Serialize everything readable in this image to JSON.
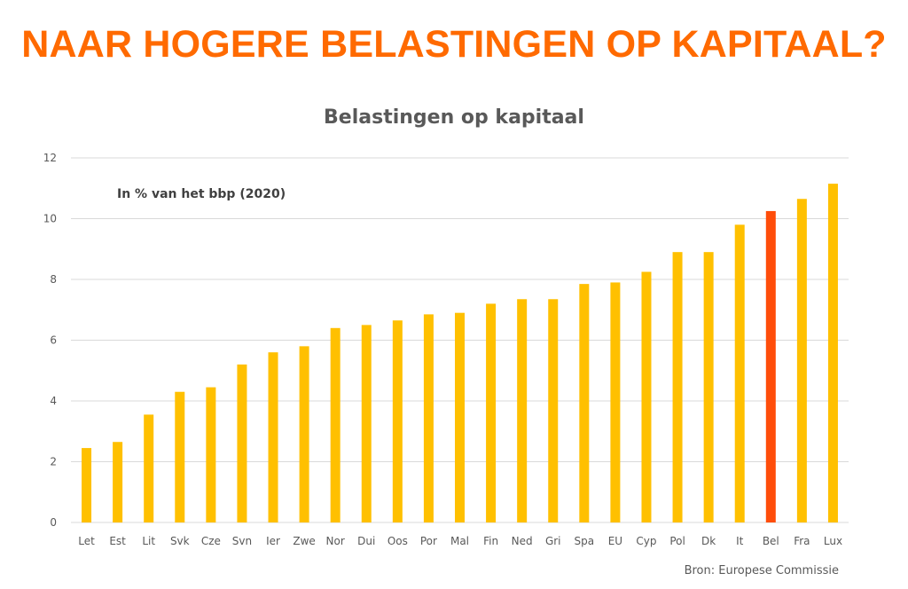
{
  "slide": {
    "headline": "NAAR HOGERE BELASTINGEN OP KAPITAAL?",
    "source": "Bron: Europese Commissie"
  },
  "colors": {
    "headline": "#ff6a00",
    "bar": "#ffc000",
    "highlight": "#ff4d0a",
    "grid": "#d9d9d9",
    "text": "#595959"
  },
  "chart_data": {
    "type": "bar",
    "title": "Belastingen op kapitaal",
    "subtitle": "In % van het bbp (2020)",
    "xlabel": "",
    "ylabel": "",
    "ylim": [
      0,
      12
    ],
    "yticks": [
      0,
      2,
      4,
      6,
      8,
      10,
      12
    ],
    "grid": true,
    "legend": "none",
    "categories": [
      "Let",
      "Est",
      "Lit",
      "Svk",
      "Cze",
      "Svn",
      "Ier",
      "Zwe",
      "Nor",
      "Dui",
      "Oos",
      "Por",
      "Mal",
      "Fin",
      "Ned",
      "Gri",
      "Spa",
      "EU",
      "Cyp",
      "Pol",
      "Dk",
      "It",
      "Bel",
      "Fra",
      "Lux"
    ],
    "values": [
      2.45,
      2.65,
      3.55,
      4.3,
      4.45,
      5.2,
      5.6,
      5.8,
      6.4,
      6.5,
      6.65,
      6.85,
      6.9,
      7.2,
      7.35,
      7.35,
      7.85,
      7.9,
      8.25,
      8.9,
      8.9,
      9.8,
      10.25,
      10.65,
      11.15
    ],
    "highlight": [
      "Bel"
    ]
  }
}
